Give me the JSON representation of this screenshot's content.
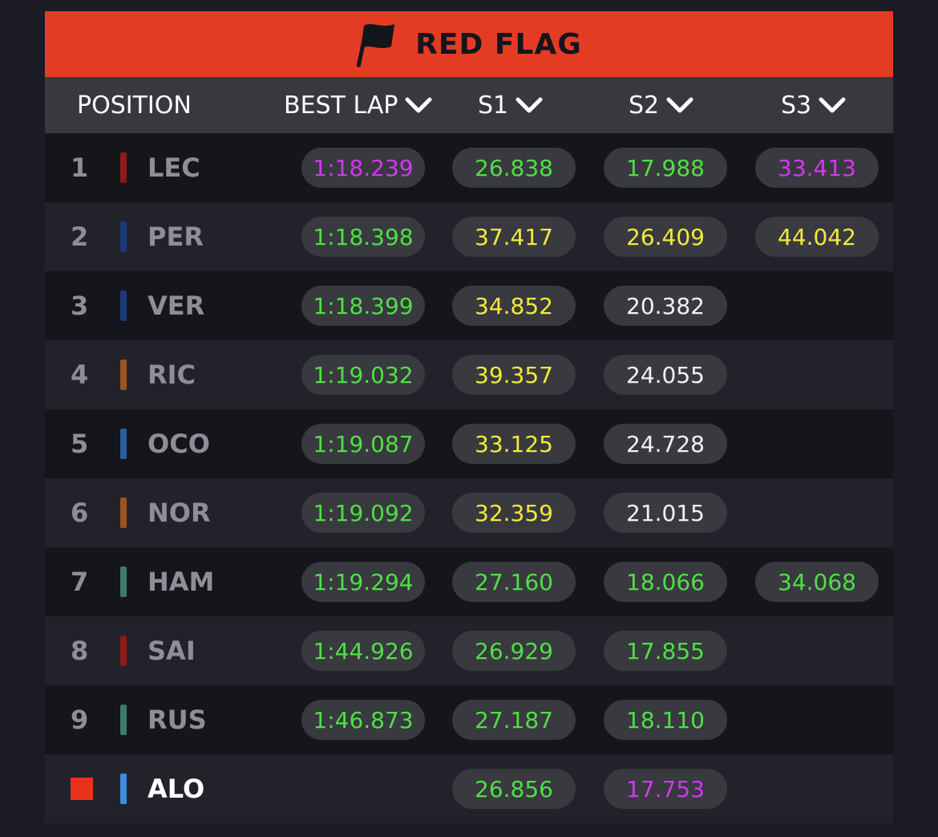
{
  "banner": {
    "title": "RED FLAG",
    "icon": "flag-icon",
    "color": "#e43c24"
  },
  "header": {
    "position": "POSITION",
    "best_lap": "BEST LAP",
    "s1": "S1",
    "s2": "S2",
    "s3": "S3"
  },
  "colors": {
    "green": "#4ee044",
    "purple": "#d138f0",
    "yellow": "#f2ea3a",
    "white": "#f2f2f2"
  },
  "rows": [
    {
      "pos": "1",
      "driver": "LEC",
      "team_color": "#8e1a1a",
      "best": "1:18.239",
      "best_c": "purple",
      "s1": "26.838",
      "s1_c": "green",
      "s2": "17.988",
      "s2_c": "green",
      "s3": "33.413",
      "s3_c": "purple"
    },
    {
      "pos": "2",
      "driver": "PER",
      "team_color": "#1c3a7a",
      "best": "1:18.398",
      "best_c": "green",
      "s1": "37.417",
      "s1_c": "yellow",
      "s2": "26.409",
      "s2_c": "yellow",
      "s3": "44.042",
      "s3_c": "yellow"
    },
    {
      "pos": "3",
      "driver": "VER",
      "team_color": "#1c3a7a",
      "best": "1:18.399",
      "best_c": "green",
      "s1": "34.852",
      "s1_c": "yellow",
      "s2": "20.382",
      "s2_c": "white",
      "s3": "",
      "s3_c": ""
    },
    {
      "pos": "4",
      "driver": "RIC",
      "team_color": "#9a5420",
      "best": "1:19.032",
      "best_c": "green",
      "s1": "39.357",
      "s1_c": "yellow",
      "s2": "24.055",
      "s2_c": "white",
      "s3": "",
      "s3_c": ""
    },
    {
      "pos": "5",
      "driver": "OCO",
      "team_color": "#2a5f9a",
      "best": "1:19.087",
      "best_c": "green",
      "s1": "33.125",
      "s1_c": "yellow",
      "s2": "24.728",
      "s2_c": "white",
      "s3": "",
      "s3_c": ""
    },
    {
      "pos": "6",
      "driver": "NOR",
      "team_color": "#9a5420",
      "best": "1:19.092",
      "best_c": "green",
      "s1": "32.359",
      "s1_c": "yellow",
      "s2": "21.015",
      "s2_c": "white",
      "s3": "",
      "s3_c": ""
    },
    {
      "pos": "7",
      "driver": "HAM",
      "team_color": "#3e7a6a",
      "best": "1:19.294",
      "best_c": "green",
      "s1": "27.160",
      "s1_c": "green",
      "s2": "18.066",
      "s2_c": "green",
      "s3": "34.068",
      "s3_c": "green"
    },
    {
      "pos": "8",
      "driver": "SAI",
      "team_color": "#8e1a1a",
      "best": "1:44.926",
      "best_c": "green",
      "s1": "26.929",
      "s1_c": "green",
      "s2": "17.855",
      "s2_c": "green",
      "s3": "",
      "s3_c": ""
    },
    {
      "pos": "9",
      "driver": "RUS",
      "team_color": "#3e7a6a",
      "best": "1:46.873",
      "best_c": "green",
      "s1": "27.187",
      "s1_c": "green",
      "s2": "18.110",
      "s2_c": "green",
      "s3": "",
      "s3_c": ""
    },
    {
      "pos": "",
      "pos_marker": "red-square-icon",
      "driver": "ALO",
      "driver_active": true,
      "team_color": "#3d8ee0",
      "best": "",
      "best_c": "",
      "s1": "26.856",
      "s1_c": "green",
      "s2": "17.753",
      "s2_c": "purple",
      "s3": "",
      "s3_c": ""
    }
  ]
}
